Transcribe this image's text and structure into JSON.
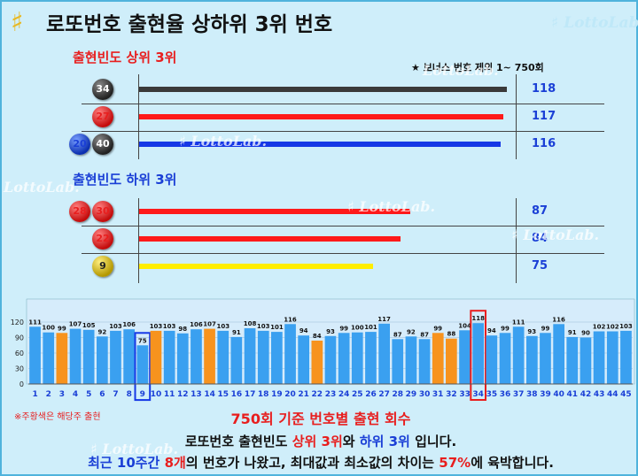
{
  "title": "로또번호 출현율 상하위 3위 번호",
  "logo_text": "LottoLab.",
  "top_section": {
    "title": "출현빈도 상위 3위",
    "bonus_note": "★ 보너스 번호 제외  1~ 750회",
    "rows": [
      {
        "balls": [
          {
            "n": "34",
            "color": "black"
          }
        ],
        "count": 118,
        "bar_color": "#3a3a3a"
      },
      {
        "balls": [
          {
            "n": "27",
            "color": "red"
          }
        ],
        "count": 117,
        "bar_color": "#ff1a1a"
      },
      {
        "balls": [
          {
            "n": "20",
            "color": "blue"
          },
          {
            "n": "40",
            "color": "black"
          }
        ],
        "count": 116,
        "bar_color": "#1638e6"
      }
    ]
  },
  "bottom_section": {
    "title": "출현빈도 하위 3위",
    "rows": [
      {
        "balls": [
          {
            "n": "28",
            "color": "red"
          },
          {
            "n": "30",
            "color": "red"
          }
        ],
        "count": 87,
        "bar_color": "#ff1a1a"
      },
      {
        "balls": [
          {
            "n": "22",
            "color": "red"
          }
        ],
        "count": 84,
        "bar_color": "#ff1a1a"
      },
      {
        "balls": [
          {
            "n": "9",
            "color": "yellow"
          }
        ],
        "count": 75,
        "bar_color": "#ffee00"
      }
    ]
  },
  "chart_data": {
    "type": "bar",
    "categories": [
      "1",
      "2",
      "3",
      "4",
      "5",
      "6",
      "7",
      "8",
      "9",
      "10",
      "11",
      "12",
      "13",
      "14",
      "15",
      "16",
      "17",
      "18",
      "19",
      "20",
      "21",
      "22",
      "23",
      "24",
      "25",
      "26",
      "27",
      "28",
      "29",
      "30",
      "31",
      "32",
      "33",
      "34",
      "35",
      "36",
      "37",
      "38",
      "39",
      "40",
      "41",
      "42",
      "43",
      "44",
      "45"
    ],
    "values": [
      111,
      100,
      99,
      107,
      105,
      92,
      103,
      106,
      75,
      103,
      103,
      98,
      106,
      107,
      103,
      91,
      108,
      103,
      101,
      116,
      94,
      84,
      93,
      99,
      100,
      101,
      117,
      87,
      92,
      87,
      99,
      88,
      104,
      118,
      94,
      99,
      111,
      93,
      99,
      116,
      91,
      90,
      102,
      102,
      103
    ],
    "highlight_orange": [
      "3",
      "10",
      "14",
      "22",
      "31",
      "32"
    ],
    "boxed": [
      "9",
      "34"
    ],
    "ylim": [
      0,
      120
    ],
    "yticks": [
      0,
      30,
      60,
      90,
      120
    ],
    "bar_color": "#3aa0f0",
    "orange_color": "#f7931e",
    "label_color_default": "#1a3fd6",
    "caption": "750회 기준 번호별 출현 회수",
    "orange_note": "※주황색은 해당주 출현"
  },
  "footer": {
    "line1": {
      "a": "로또번호 출현빈도 ",
      "b": "상위 3위",
      "c": "와 ",
      "d": "하위 3위",
      "e": " 입니다."
    },
    "line2": {
      "a": "최근 10주간 ",
      "b": "8개",
      "c": "의 번호가 나왔고, 최대값과 최소값의 차이는 ",
      "d": "57%",
      "e": "에 육박합니다."
    }
  }
}
